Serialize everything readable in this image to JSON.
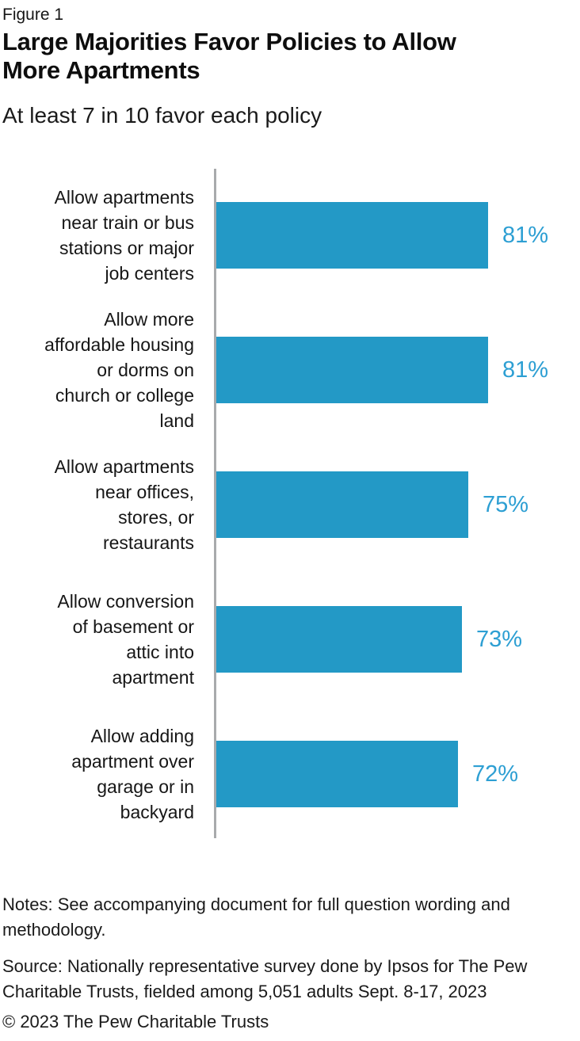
{
  "header": {
    "figure_label": "Figure 1",
    "title_lines": [
      "Large Majorities Favor Policies to Allow",
      "More Apartments"
    ],
    "subtitle": "At least 7 in 10 favor each policy"
  },
  "chart_data": {
    "type": "bar",
    "orientation": "horizontal",
    "title": "Large Majorities Favor Policies to Allow More Apartments",
    "subtitle": "At least 7 in 10 favor each policy",
    "categories": [
      "Allow apartments near train or bus stations or major job centers",
      "Allow more affordable housing or dorms on church or college land",
      "Allow apartments near offices, stores, or restaurants",
      "Allow conversion of basement or attic into apartment",
      "Allow adding apartment over garage or in backyard"
    ],
    "category_lines": [
      [
        "Allow apartments",
        "near train or bus",
        "stations or major",
        "job centers"
      ],
      [
        "Allow more",
        "affordable housing",
        "or dorms on",
        "church or college",
        "land"
      ],
      [
        "Allow apartments",
        "near offices,",
        "stores, or",
        "restaurants"
      ],
      [
        "Allow conversion",
        "of basement or",
        "attic into",
        "apartment"
      ],
      [
        "Allow adding",
        "apartment over",
        "garage or in",
        "backyard"
      ]
    ],
    "values": [
      81,
      81,
      75,
      73,
      72
    ],
    "value_labels": [
      "81%",
      "81%",
      "75%",
      "73%",
      "72%"
    ],
    "xlabel": "",
    "ylabel": "",
    "xlim": [
      0,
      100
    ],
    "grid": false,
    "legend": false,
    "bar_color": "#2399C6",
    "value_label_color": "#2D9FD3",
    "axis_line_color": "#A8AAAC"
  },
  "footer": {
    "notes_lines": [
      "Notes: See accompanying document for full question wording and",
      "methodology."
    ],
    "source_lines": [
      "Source: Nationally representative survey done by Ipsos for The Pew",
      "Charitable Trusts, fielded among 5,051 adults Sept. 8-17, 2023"
    ],
    "copyright": "© 2023 The Pew Charitable Trusts"
  }
}
